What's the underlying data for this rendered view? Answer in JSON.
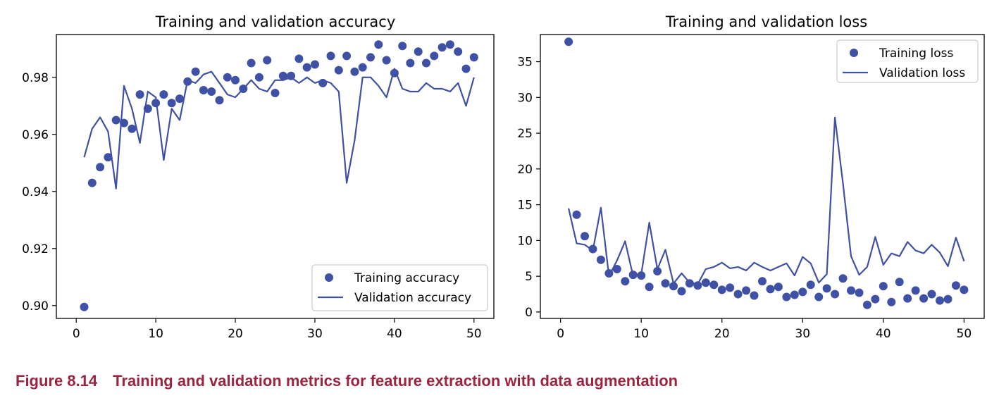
{
  "colors": {
    "series": "#3f51a5",
    "caption": "#9b2440",
    "axis": "#000000"
  },
  "caption": {
    "number": "Figure 8.14",
    "text": "Training and validation metrics for feature extraction with data augmentation"
  },
  "chart_data": [
    {
      "type": "line",
      "title": "Training and validation accuracy",
      "xlabel": "",
      "ylabel": "",
      "xlim": [
        -2.5,
        52.5
      ],
      "ylim": [
        0.8955,
        0.995
      ],
      "xticks": [
        0,
        10,
        20,
        30,
        40,
        50
      ],
      "yticks": [
        0.9,
        0.92,
        0.94,
        0.96,
        0.98
      ],
      "ytick_labels": [
        "0.90",
        "0.92",
        "0.94",
        "0.96",
        "0.98"
      ],
      "grid": false,
      "legend_position": "lower right",
      "x": [
        1,
        2,
        3,
        4,
        5,
        6,
        7,
        8,
        9,
        10,
        11,
        12,
        13,
        14,
        15,
        16,
        17,
        18,
        19,
        20,
        21,
        22,
        23,
        24,
        25,
        26,
        27,
        28,
        29,
        30,
        31,
        32,
        33,
        34,
        35,
        36,
        37,
        38,
        39,
        40,
        41,
        42,
        43,
        44,
        45,
        46,
        47,
        48,
        49,
        50
      ],
      "series": [
        {
          "name": "Training accuracy",
          "style": "dots",
          "values": [
            0.8995,
            0.943,
            0.9485,
            0.952,
            0.965,
            0.964,
            0.962,
            0.974,
            0.969,
            0.971,
            0.974,
            0.971,
            0.9725,
            0.9785,
            0.982,
            0.9755,
            0.975,
            0.972,
            0.98,
            0.979,
            0.976,
            0.985,
            0.98,
            0.986,
            0.9745,
            0.9805,
            0.9805,
            0.9865,
            0.9835,
            0.9845,
            0.978,
            0.9875,
            0.9825,
            0.9875,
            0.982,
            0.9835,
            0.987,
            0.9915,
            0.986,
            0.9815,
            0.991,
            0.985,
            0.989,
            0.985,
            0.9875,
            0.9905,
            0.9915,
            0.989,
            0.983,
            0.987
          ]
        },
        {
          "name": "Validation accuracy",
          "style": "line",
          "values": [
            0.952,
            0.962,
            0.966,
            0.961,
            0.941,
            0.977,
            0.969,
            0.957,
            0.975,
            0.973,
            0.951,
            0.969,
            0.965,
            0.979,
            0.978,
            0.981,
            0.982,
            0.978,
            0.974,
            0.973,
            0.976,
            0.979,
            0.976,
            0.975,
            0.979,
            0.979,
            0.98,
            0.978,
            0.98,
            0.978,
            0.979,
            0.978,
            0.975,
            0.943,
            0.958,
            0.98,
            0.98,
            0.977,
            0.973,
            0.983,
            0.976,
            0.975,
            0.975,
            0.978,
            0.976,
            0.976,
            0.975,
            0.978,
            0.97,
            0.98
          ]
        }
      ]
    },
    {
      "type": "line",
      "title": "Training and validation loss",
      "xlabel": "",
      "ylabel": "",
      "xlim": [
        -2.5,
        52.5
      ],
      "ylim": [
        -0.9,
        38.8
      ],
      "xticks": [
        0,
        10,
        20,
        30,
        40,
        50
      ],
      "yticks": [
        0,
        5,
        10,
        15,
        20,
        25,
        30,
        35
      ],
      "ytick_labels": [
        "0",
        "5",
        "10",
        "15",
        "20",
        "25",
        "30",
        "35"
      ],
      "grid": false,
      "legend_position": "upper right",
      "x": [
        1,
        2,
        3,
        4,
        5,
        6,
        7,
        8,
        9,
        10,
        11,
        12,
        13,
        14,
        15,
        16,
        17,
        18,
        19,
        20,
        21,
        22,
        23,
        24,
        25,
        26,
        27,
        28,
        29,
        30,
        31,
        32,
        33,
        34,
        35,
        36,
        37,
        38,
        39,
        40,
        41,
        42,
        43,
        44,
        45,
        46,
        47,
        48,
        49,
        50
      ],
      "series": [
        {
          "name": "Training loss",
          "style": "dots",
          "values": [
            37.8,
            13.6,
            10.6,
            8.8,
            7.3,
            5.4,
            6.0,
            4.3,
            5.2,
            5.1,
            3.5,
            5.7,
            4.0,
            3.6,
            2.9,
            4.0,
            3.7,
            4.1,
            3.8,
            3.1,
            3.4,
            2.5,
            3.0,
            2.3,
            4.3,
            3.2,
            3.5,
            2.1,
            2.4,
            2.8,
            3.8,
            2.1,
            3.3,
            2.5,
            4.7,
            3.0,
            2.7,
            1.0,
            1.8,
            3.6,
            1.4,
            4.2,
            1.9,
            3.0,
            1.9,
            2.5,
            1.6,
            1.8,
            3.7,
            3.1
          ]
        },
        {
          "name": "Validation loss",
          "style": "line",
          "values": [
            14.5,
            9.6,
            9.4,
            8.6,
            14.6,
            5.0,
            7.2,
            9.9,
            5.0,
            5.3,
            12.5,
            6.0,
            8.7,
            4.0,
            5.4,
            4.1,
            3.9,
            6.0,
            6.3,
            6.9,
            6.1,
            6.3,
            5.8,
            6.9,
            6.3,
            5.8,
            6.3,
            6.8,
            5.1,
            7.7,
            6.8,
            4.1,
            5.3,
            27.2,
            18.0,
            7.8,
            5.2,
            6.3,
            10.5,
            6.6,
            8.2,
            7.8,
            9.8,
            8.6,
            8.2,
            9.4,
            8.3,
            6.4,
            10.4,
            7.1
          ]
        }
      ]
    }
  ]
}
